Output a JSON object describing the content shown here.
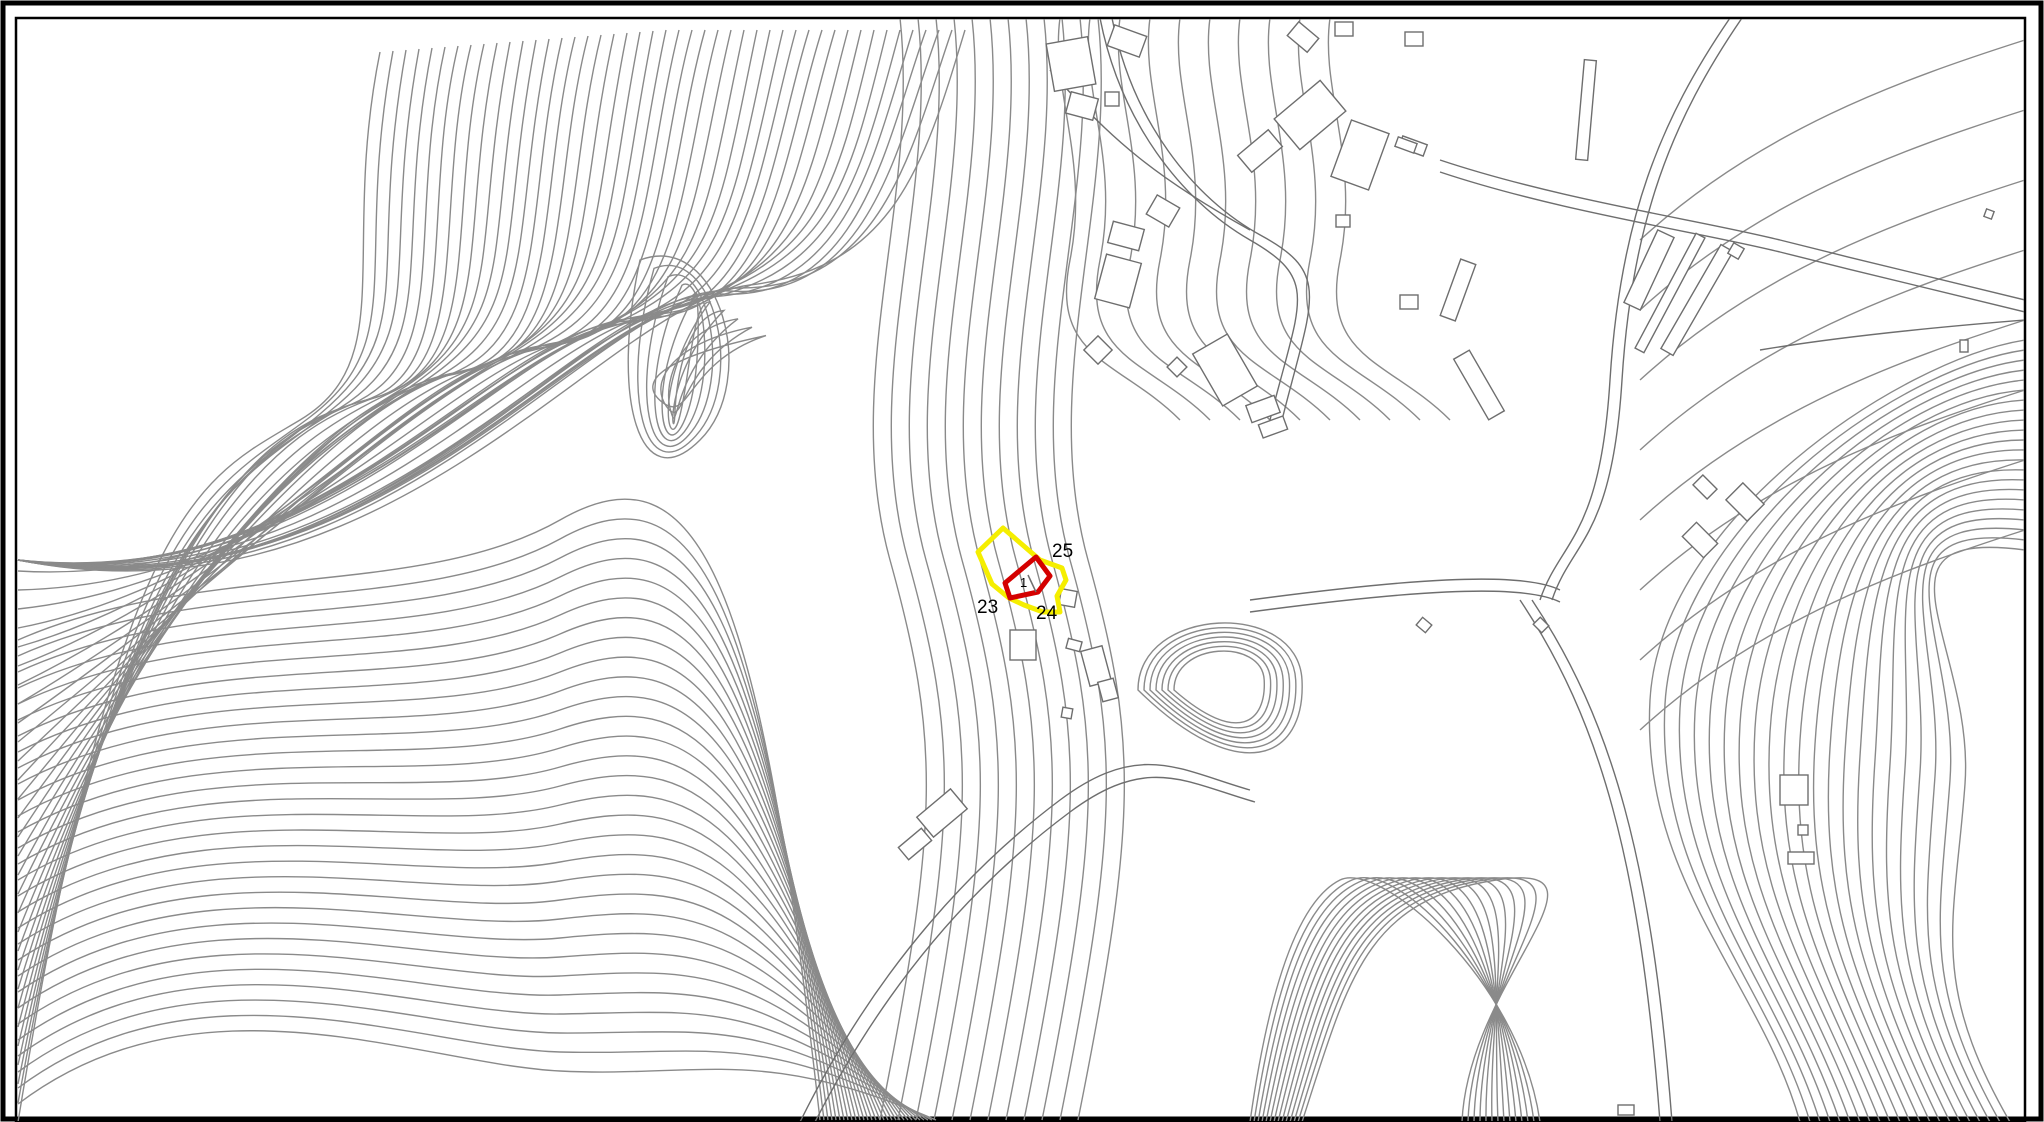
{
  "map": {
    "parcel_labels": [
      {
        "id": "p25",
        "text": "25"
      },
      {
        "id": "p23",
        "text": "23"
      },
      {
        "id": "p24",
        "text": "24"
      },
      {
        "id": "p1",
        "text": "1"
      }
    ],
    "colors": {
      "frame": "#000000",
      "contour": "#8a8a8a",
      "road": "#6e6e6e",
      "highlight_area": "#f5ee00",
      "target_parcel": "#d40000"
    }
  }
}
